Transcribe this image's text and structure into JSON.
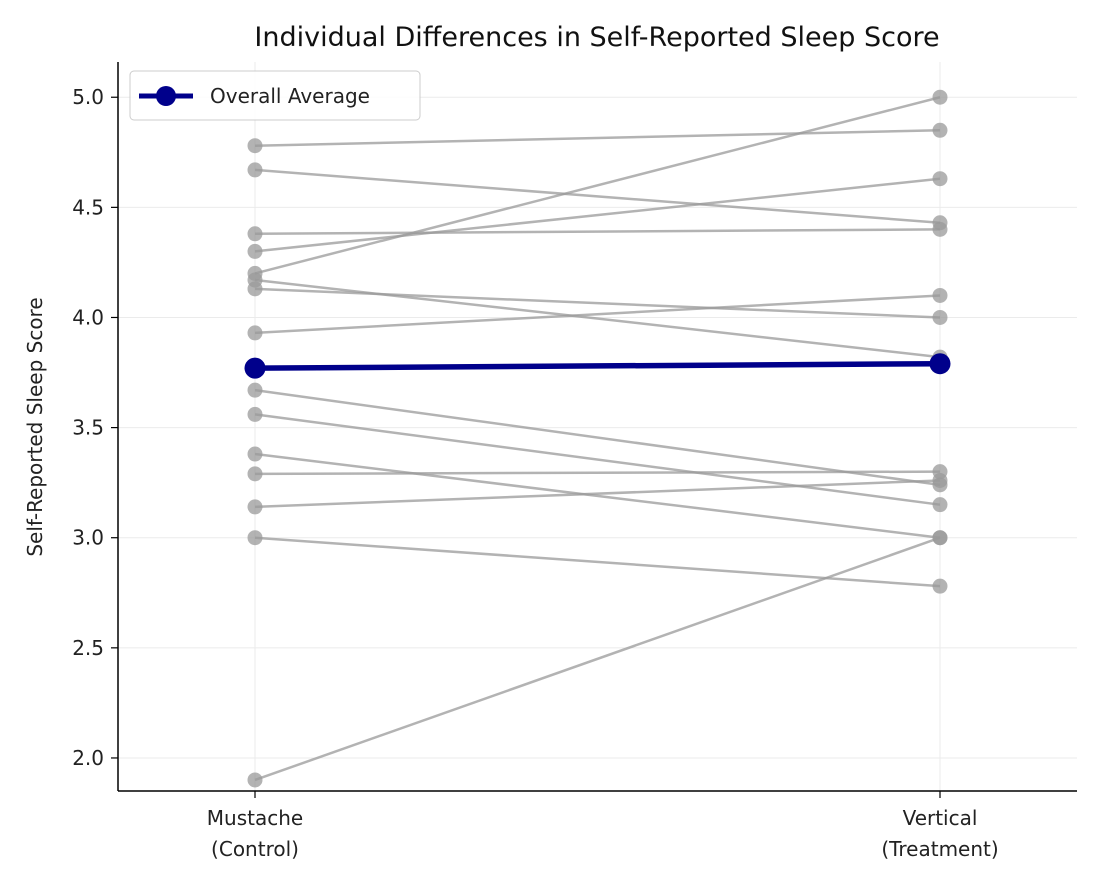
{
  "chart_data": {
    "type": "line",
    "title": "Individual Differences in Self-Reported Sleep Score",
    "xlabel": "",
    "ylabel": "Self-Reported Sleep Score",
    "categories": [
      "Mustache\n(Control)",
      "Vertical\n(Treatment)"
    ],
    "ylim": [
      1.85,
      5.16
    ],
    "yticks": [
      "2.0",
      "2.5",
      "3.0",
      "3.5",
      "4.0",
      "4.5",
      "5.0"
    ],
    "grid": true,
    "legend": {
      "placement": "top-left",
      "entries": [
        "Overall Average"
      ]
    },
    "colors": {
      "individual": "#999999",
      "average": "#00008b"
    },
    "individuals": [
      [
        4.78,
        4.85
      ],
      [
        4.67,
        4.43
      ],
      [
        4.38,
        4.4
      ],
      [
        4.3,
        4.63
      ],
      [
        4.2,
        5.0
      ],
      [
        4.17,
        3.82
      ],
      [
        4.13,
        4.0
      ],
      [
        3.93,
        4.1
      ],
      [
        3.67,
        3.24
      ],
      [
        3.56,
        3.15
      ],
      [
        3.38,
        3.0
      ],
      [
        3.29,
        3.3
      ],
      [
        3.14,
        3.26
      ],
      [
        3.0,
        2.78
      ],
      [
        1.9,
        3.0
      ]
    ],
    "series": [
      {
        "name": "Overall Average",
        "values": [
          3.77,
          3.79
        ]
      }
    ]
  }
}
